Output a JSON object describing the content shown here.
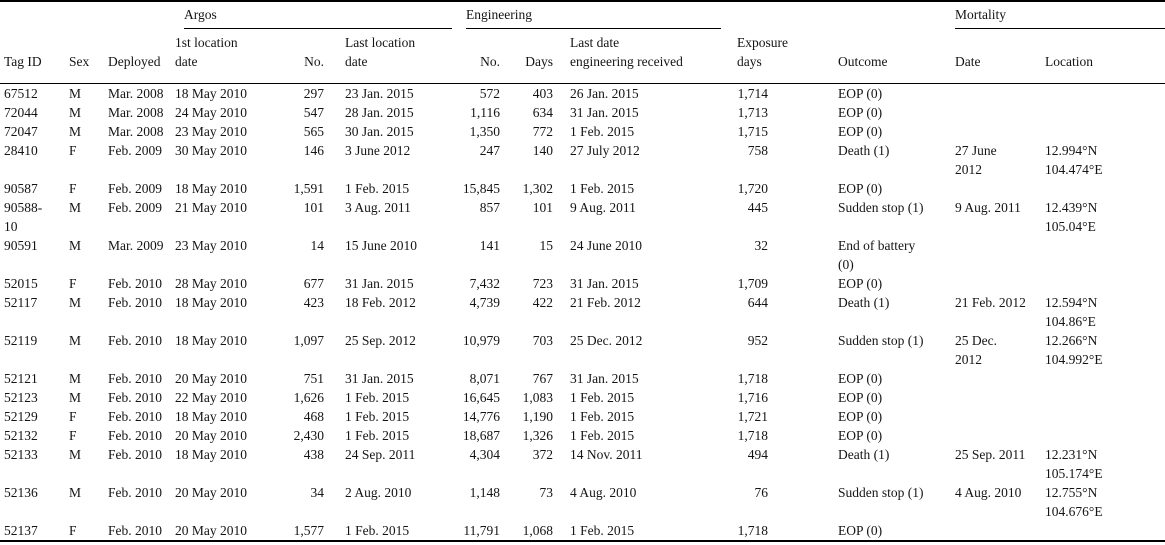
{
  "table": {
    "group_headers": [
      {
        "label": "Argos"
      },
      {
        "label": "Engineering"
      },
      {
        "label": "Mortality"
      }
    ],
    "column_headers": [
      "Tag ID",
      "Sex",
      "Deployed",
      "1st location\ndate",
      "No.",
      "Last location\ndate",
      "No.",
      "Days",
      "Last date\nengineering received",
      "Exposure\ndays",
      "Outcome",
      "Date",
      "Location"
    ],
    "rows": [
      [
        "67512",
        "M",
        "Mar. 2008",
        "18 May 2010",
        "297",
        "23 Jan. 2015",
        "572",
        "403",
        "26 Jan. 2015",
        "1,714",
        "EOP (0)",
        "",
        ""
      ],
      [
        "72044",
        "M",
        "Mar. 2008",
        "24 May 2010",
        "547",
        "28 Jan. 2015",
        "1,116",
        "634",
        "31 Jan. 2015",
        "1,713",
        "EOP (0)",
        "",
        ""
      ],
      [
        "72047",
        "M",
        "Mar. 2008",
        "23 May 2010",
        "565",
        "30 Jan. 2015",
        "1,350",
        "772",
        "1 Feb. 2015",
        "1,715",
        "EOP (0)",
        "",
        ""
      ],
      [
        "28410",
        "F",
        "Feb. 2009",
        "30 May 2010",
        "146",
        "3 June 2012",
        "247",
        "140",
        "27 July 2012",
        "758",
        "Death (1)",
        "27 June\n2012",
        "12.994°N\n104.474°E"
      ],
      [
        "90587",
        "F",
        "Feb. 2009",
        "18 May 2010",
        "1,591",
        "1 Feb. 2015",
        "15,845",
        "1,302",
        "1 Feb. 2015",
        "1,720",
        "EOP (0)",
        "",
        ""
      ],
      [
        "90588-\n10",
        "M",
        "Feb. 2009",
        "21 May 2010",
        "101",
        "3 Aug. 2011",
        "857",
        "101",
        "9 Aug. 2011",
        "445",
        "Sudden stop (1)",
        "9 Aug. 2011",
        "12.439°N\n105.04°E"
      ],
      [
        "90591",
        "M",
        "Mar. 2009",
        "23 May 2010",
        "14",
        "15 June 2010",
        "141",
        "15",
        "24 June 2010",
        "32",
        "End of battery\n(0)",
        "",
        ""
      ],
      [
        "52015",
        "F",
        "Feb. 2010",
        "28 May 2010",
        "677",
        "31 Jan. 2015",
        "7,432",
        "723",
        "31 Jan. 2015",
        "1,709",
        "EOP (0)",
        "",
        ""
      ],
      [
        "52117",
        "M",
        "Feb. 2010",
        "18 May 2010",
        "423",
        "18 Feb. 2012",
        "4,739",
        "422",
        "21 Feb. 2012",
        "644",
        "Death (1)",
        "21 Feb. 2012",
        "12.594°N\n104.86°E"
      ],
      [
        "52119",
        "M",
        "Feb. 2010",
        "18 May 2010",
        "1,097",
        "25 Sep. 2012",
        "10,979",
        "703",
        "25 Dec. 2012",
        "952",
        "Sudden stop (1)",
        "25 Dec.\n2012",
        "12.266°N\n104.992°E"
      ],
      [
        "52121",
        "M",
        "Feb. 2010",
        "20 May 2010",
        "751",
        "31 Jan. 2015",
        "8,071",
        "767",
        "31 Jan. 2015",
        "1,718",
        "EOP (0)",
        "",
        ""
      ],
      [
        "52123",
        "M",
        "Feb. 2010",
        "22 May 2010",
        "1,626",
        "1 Feb. 2015",
        "16,645",
        "1,083",
        "1 Feb. 2015",
        "1,716",
        "EOP (0)",
        "",
        ""
      ],
      [
        "52129",
        "F",
        "Feb. 2010",
        "18 May 2010",
        "468",
        "1 Feb. 2015",
        "14,776",
        "1,190",
        "1 Feb. 2015",
        "1,721",
        "EOP (0)",
        "",
        ""
      ],
      [
        "52132",
        "F",
        "Feb. 2010",
        "20 May 2010",
        "2,430",
        "1 Feb. 2015",
        "18,687",
        "1,326",
        "1 Feb. 2015",
        "1,718",
        "EOP (0)",
        "",
        ""
      ],
      [
        "52133",
        "M",
        "Feb. 2010",
        "18 May 2010",
        "438",
        "24 Sep. 2011",
        "4,304",
        "372",
        "14 Nov. 2011",
        "494",
        "Death (1)",
        "25 Sep. 2011",
        "12.231°N\n105.174°E"
      ],
      [
        "52136",
        "M",
        "Feb. 2010",
        "20 May 2010",
        "34",
        "2 Aug. 2010",
        "1,148",
        "73",
        "4 Aug. 2010",
        "76",
        "Sudden stop (1)",
        "4 Aug. 2010",
        "12.755°N\n104.676°E"
      ],
      [
        "52137",
        "F",
        "Feb. 2010",
        "20 May 2010",
        "1,577",
        "1 Feb. 2015",
        "11,791",
        "1,068",
        "1 Feb. 2015",
        "1,718",
        "EOP (0)",
        "",
        ""
      ]
    ]
  },
  "colors": {
    "background": "#ffffff",
    "text": "#141414",
    "rule": "#000000"
  }
}
